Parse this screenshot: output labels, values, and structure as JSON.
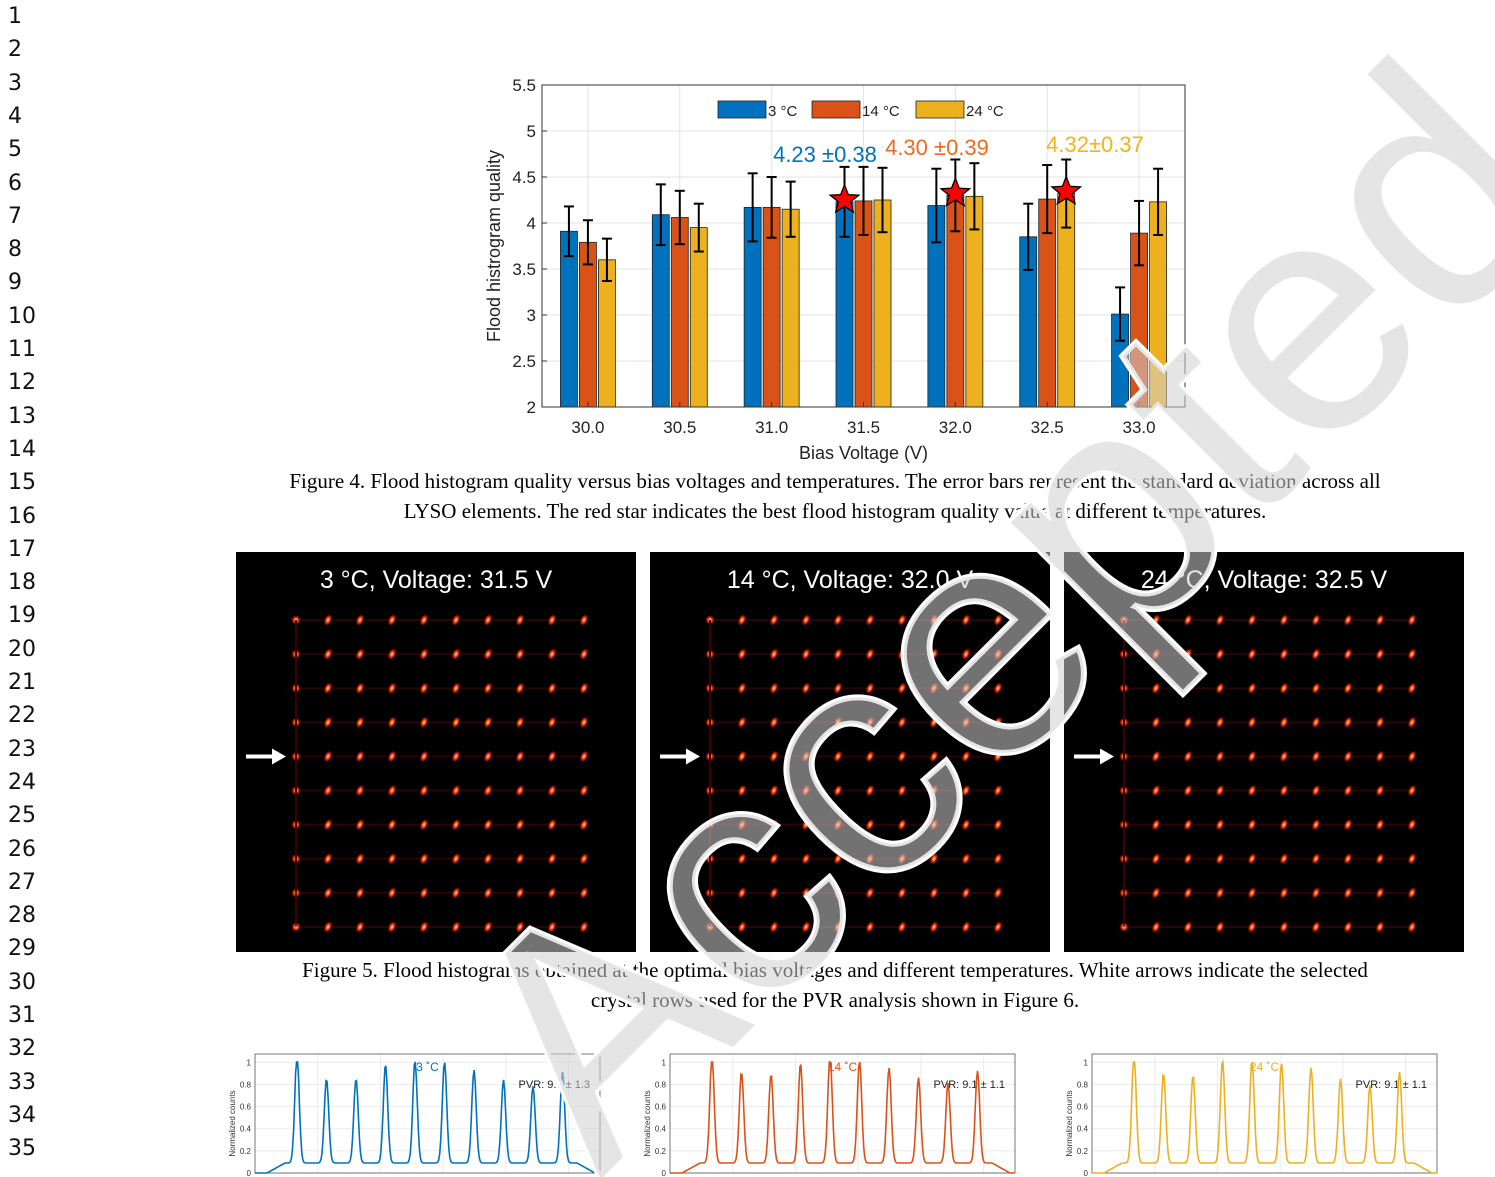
{
  "line_numbers": [
    "1",
    "2",
    "3",
    "4",
    "5",
    "6",
    "7",
    "8",
    "9",
    "10",
    "11",
    "12",
    "13",
    "14",
    "15",
    "16",
    "17",
    "18",
    "19",
    "20",
    "21",
    "22",
    "23",
    "24",
    "25",
    "26",
    "27",
    "28",
    "29",
    "30",
    "31",
    "32",
    "33",
    "34",
    "35"
  ],
  "figure4": {
    "caption_line1": "Figure 4. Flood histogram quality versus bias voltages and temperatures. The error bars represent the standard deviation across all",
    "caption_line2": "LYSO elements. The red star indicates the best flood histogram quality value at different temperatures.",
    "best_labels": [
      {
        "text": "4.23 ±0.38",
        "color": "#0072BD"
      },
      {
        "text": "4.30 ±0.39",
        "color": "#F06A1E"
      },
      {
        "text": "4.32±0.37",
        "color": "#F5B21A"
      }
    ]
  },
  "figure5": {
    "caption_line1": "Figure 5. Flood histograms obtained at the optimal bias voltages and different temperatures. White arrows indicate the selected",
    "caption_line2": "crystal rows used for the PVR analysis shown in Figure 6.",
    "panels": [
      {
        "title": "3 °C, Voltage: 31.5 V"
      },
      {
        "title": "14 °C, Voltage: 32.0 V"
      },
      {
        "title": "24 °C, Voltage: 32.5 V"
      }
    ]
  },
  "figure6": {
    "ylabel": "Normalized counts",
    "yticks": [
      "0",
      "0.2",
      "0.4",
      "0.6",
      "0.8",
      "1"
    ],
    "panels": [
      {
        "title": "3 ˚C",
        "pvr": "PVR: 9.7  ±  1.3",
        "color": "#0072BD",
        "peaks": [
          1.0,
          0.76,
          0.76,
          0.89,
          0.93,
          0.91,
          0.84,
          0.75,
          0.69,
          0.82
        ]
      },
      {
        "title": "14 ˚C",
        "pvr": "PVR: 9.1  ±  1.1",
        "color": "#D95319",
        "peaks": [
          0.98,
          0.82,
          0.8,
          0.9,
          0.98,
          0.92,
          0.86,
          0.77,
          0.72,
          0.83
        ]
      },
      {
        "title": "24 ˚C",
        "pvr": "PVR: 9.1  ±  1.1",
        "color": "#EDB120",
        "peaks": [
          1.0,
          0.81,
          0.79,
          0.93,
          0.93,
          0.9,
          0.86,
          0.76,
          0.7,
          0.82
        ]
      }
    ]
  },
  "watermark_text": "Accepted Manuscript",
  "chart_data": {
    "type": "bar",
    "title": "",
    "xlabel": "Bias Voltage (V)",
    "ylabel": "Flood histrogram quality",
    "ylim": [
      2,
      5.5
    ],
    "yticks": [
      2,
      2.5,
      3,
      3.5,
      4,
      4.5,
      5,
      5.5
    ],
    "grid": true,
    "legend_position": "top-center",
    "categories": [
      "30.0",
      "30.5",
      "31.0",
      "31.5",
      "32.0",
      "32.5",
      "33.0"
    ],
    "series": [
      {
        "name": "3 °C",
        "color": "#0072BD",
        "values": [
          3.91,
          4.09,
          4.17,
          4.23,
          4.19,
          3.85,
          3.01
        ],
        "errors": [
          0.27,
          0.33,
          0.37,
          0.38,
          0.4,
          0.36,
          0.29
        ]
      },
      {
        "name": "14 °C",
        "color": "#D95319",
        "values": [
          3.79,
          4.06,
          4.17,
          4.24,
          4.3,
          4.26,
          3.89
        ],
        "errors": [
          0.24,
          0.29,
          0.33,
          0.37,
          0.39,
          0.37,
          0.35
        ]
      },
      {
        "name": "24 °C",
        "color": "#EDB120",
        "values": [
          3.6,
          3.95,
          4.15,
          4.25,
          4.29,
          4.32,
          4.23
        ],
        "errors": [
          0.23,
          0.26,
          0.3,
          0.35,
          0.36,
          0.37,
          0.36
        ]
      }
    ],
    "best": [
      {
        "series": 0,
        "category": "31.5",
        "value": 4.23
      },
      {
        "series": 1,
        "category": "32.0",
        "value": 4.3
      },
      {
        "series": 2,
        "category": "32.5",
        "value": 4.32
      }
    ]
  }
}
